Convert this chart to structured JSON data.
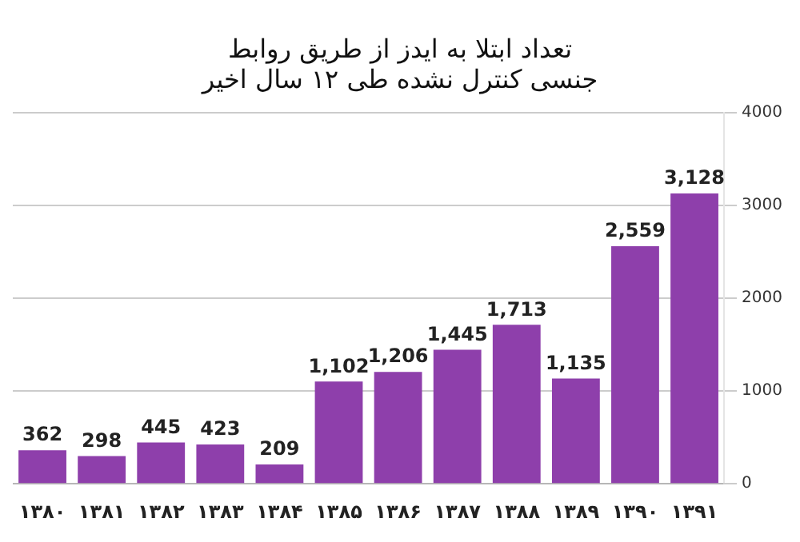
{
  "chart_data": {
    "type": "bar",
    "title": "تعداد ابتلا به ایدز از طریق روابط\nجنسی کنترل نشده طی ۱۲ سال اخیر",
    "categories": [
      "۱۳۸۰",
      "۱۳۸۱",
      "۱۳۸۲",
      "۱۳۸۳",
      "۱۳۸۴",
      "۱۳۸۵",
      "۱۳۸۶",
      "۱۳۸۷",
      "۱۳۸۸",
      "۱۳۸۹",
      "۱۳۹۰",
      "۱۳۹۱"
    ],
    "values": [
      362,
      298,
      445,
      423,
      209,
      1102,
      1206,
      1445,
      1713,
      1135,
      2559,
      3128
    ],
    "value_labels": [
      "362",
      "298",
      "445",
      "423",
      "209",
      "1,102",
      "1,206",
      "1,445",
      "1,713",
      "1,135",
      "2,559",
      "3,128"
    ],
    "color": "#8e3fab",
    "ylim": [
      0,
      4000
    ],
    "yticks": [
      0,
      1000,
      2000,
      3000,
      4000
    ],
    "grid": "y"
  }
}
